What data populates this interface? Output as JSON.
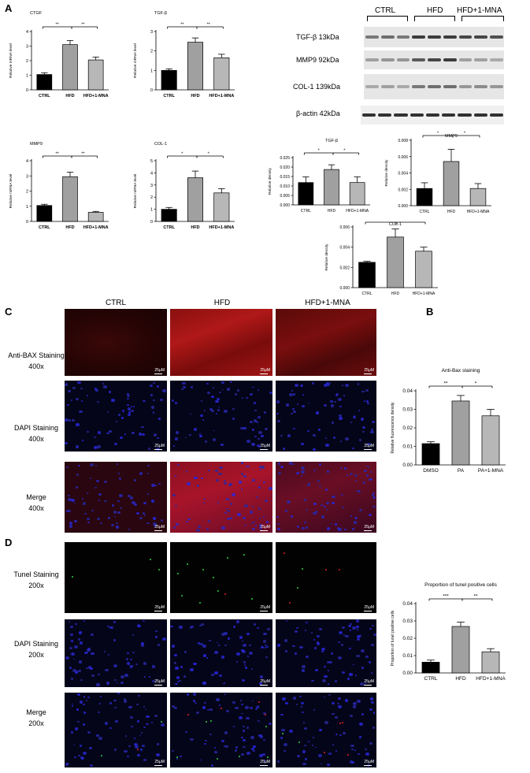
{
  "panels": {
    "A": "A",
    "B": "B",
    "C": "C",
    "D": "D"
  },
  "colors": {
    "black_bar": "#000000",
    "grey_bar": "#a0a0a0",
    "light_bar": "#b7b7b7"
  },
  "chart_data": [
    {
      "id": "ctgf",
      "type": "bar",
      "title": "CTGF",
      "ylabel": "Relative mRNA level",
      "categories": [
        "CTRL",
        "HFD",
        "HFD+1-MNA"
      ],
      "values": [
        1.05,
        3.1,
        2.05
      ],
      "errors": [
        0.12,
        0.28,
        0.2
      ],
      "ylim": [
        0,
        4
      ],
      "yticks": [
        "0",
        "1",
        "2",
        "3",
        "4"
      ],
      "sig": [
        {
          "from": 0,
          "to": 1,
          "label": "**"
        },
        {
          "from": 1,
          "to": 2,
          "label": "**"
        }
      ]
    },
    {
      "id": "tgfb",
      "type": "bar",
      "title": "TGF-β",
      "ylabel": "Relative mRNA level",
      "categories": [
        "CTRL",
        "HFD",
        "HFD+1-MNA"
      ],
      "values": [
        1.0,
        2.45,
        1.65
      ],
      "errors": [
        0.08,
        0.22,
        0.18
      ],
      "ylim": [
        0,
        3
      ],
      "yticks": [
        "0",
        "1",
        "2",
        "3"
      ],
      "sig": [
        {
          "from": 0,
          "to": 1,
          "label": "**"
        },
        {
          "from": 1,
          "to": 2,
          "label": "**"
        }
      ]
    },
    {
      "id": "mmp9",
      "type": "bar",
      "title": "MMP9",
      "ylabel": "Relative mRNA level",
      "categories": [
        "CTRL",
        "HFD",
        "HFD+1-MNA"
      ],
      "values": [
        1.05,
        2.95,
        0.6
      ],
      "errors": [
        0.08,
        0.3,
        0.06
      ],
      "ylim": [
        0,
        4
      ],
      "yticks": [
        "0",
        "1",
        "2",
        "3",
        "4"
      ],
      "sig": [
        {
          "from": 0,
          "to": 1,
          "label": "**"
        },
        {
          "from": 1,
          "to": 2,
          "label": "**"
        }
      ]
    },
    {
      "id": "col1",
      "type": "bar",
      "title": "COL-1",
      "ylabel": "Relative mRNA level",
      "categories": [
        "CTRL",
        "HFD",
        "HFD+1-MNA"
      ],
      "values": [
        1.0,
        3.6,
        2.35
      ],
      "errors": [
        0.15,
        0.55,
        0.35
      ],
      "ylim": [
        0,
        5
      ],
      "yticks": [
        "0",
        "1",
        "2",
        "3",
        "4",
        "5"
      ],
      "sig": [
        {
          "from": 0,
          "to": 1,
          "label": "*"
        },
        {
          "from": 1,
          "to": 2,
          "label": "*"
        }
      ]
    },
    {
      "id": "tgfb_density",
      "type": "bar",
      "title": "TGF-β",
      "ylabel": "Relative density",
      "categories": [
        "CTRL",
        "HFD",
        "HFD+1-MNA"
      ],
      "values": [
        0.0118,
        0.0187,
        0.0118
      ],
      "errors": [
        0.003,
        0.0025,
        0.003
      ],
      "ylim": [
        0,
        0.025
      ],
      "yticks": [
        "0.000",
        "0.005",
        "0.010",
        "0.015",
        "0.020",
        "0.025"
      ],
      "sig": [
        {
          "from": 0,
          "to": 1,
          "label": "*"
        },
        {
          "from": 1,
          "to": 2,
          "label": "*"
        }
      ]
    },
    {
      "id": "mmp9_density",
      "type": "bar",
      "title": "MMP9",
      "ylabel": "Relative density",
      "categories": [
        "CTRL",
        "HFD",
        "HFD+1-MNA"
      ],
      "values": [
        0.0021,
        0.0054,
        0.0021
      ],
      "errors": [
        0.0007,
        0.0015,
        0.0006
      ],
      "ylim": [
        0,
        0.008
      ],
      "yticks": [
        "0.000",
        "0.002",
        "0.004",
        "0.006",
        "0.008"
      ],
      "sig": [
        {
          "from": 0,
          "to": 1,
          "label": "*"
        },
        {
          "from": 1,
          "to": 2,
          "label": "*"
        }
      ]
    },
    {
      "id": "col1_density",
      "type": "bar",
      "title": "COL-1",
      "ylabel": "Relative density",
      "categories": [
        "CTRL",
        "HFD",
        "HFD+1-MNA"
      ],
      "values": [
        0.0025,
        0.005,
        0.0036
      ],
      "errors": [
        0.0001,
        0.0008,
        0.0004
      ],
      "ylim": [
        0,
        0.006
      ],
      "yticks": [
        "0.000",
        "0.002",
        "0.004",
        "0.006"
      ],
      "sig": [
        {
          "from": 0,
          "to": 1,
          "label": "*"
        },
        {
          "from": 1,
          "to": 2,
          "label": "*"
        }
      ]
    },
    {
      "id": "bax",
      "type": "bar",
      "title": "Anti-Bax staining",
      "ylabel": "Relative fluorescence density",
      "categories": [
        "DMSO",
        "PA",
        "PA+1-MNA"
      ],
      "values": [
        0.0115,
        0.0345,
        0.0265
      ],
      "errors": [
        0.001,
        0.003,
        0.0035
      ],
      "ylim": [
        0,
        0.04
      ],
      "yticks": [
        "0.00",
        "0.01",
        "0.02",
        "0.03",
        "0.04"
      ],
      "sig": [
        {
          "from": 0,
          "to": 1,
          "label": "**"
        },
        {
          "from": 1,
          "to": 2,
          "label": "*"
        }
      ]
    },
    {
      "id": "tunel",
      "type": "bar",
      "title": "Proportion of tunel positive cells",
      "ylabel": "Proportion of tunel positive cells",
      "categories": [
        "CTRL",
        "HFD",
        "HFD+1-MNA"
      ],
      "values": [
        0.0062,
        0.0268,
        0.0122
      ],
      "errors": [
        0.0012,
        0.0025,
        0.0018
      ],
      "ylim": [
        0,
        0.04
      ],
      "yticks": [
        "0.00",
        "0.01",
        "0.02",
        "0.03",
        "0.04"
      ],
      "sig": [
        {
          "from": 0,
          "to": 1,
          "label": "***"
        },
        {
          "from": 1,
          "to": 2,
          "label": "**"
        }
      ]
    }
  ],
  "western": {
    "groups": [
      "CTRL",
      "HFD",
      "HFD+1-MNA"
    ],
    "rows": [
      "TGF-β 13kDa",
      "MMP9 92kDa",
      "COL-1 139kDa",
      "β-actin 42kDa"
    ]
  },
  "micro": {
    "columns": [
      "CTRL",
      "HFD",
      "HFD+1-MNA"
    ],
    "c_rows": [
      "Anti-BAX Staining",
      "400x",
      "DAPI Staining",
      "400x",
      "Merge",
      "400x"
    ],
    "d_rows": [
      "Tunel Staining",
      "200x",
      "DAPI Staining",
      "200x",
      "Merge",
      "200x"
    ],
    "scale_label": "25μM"
  }
}
